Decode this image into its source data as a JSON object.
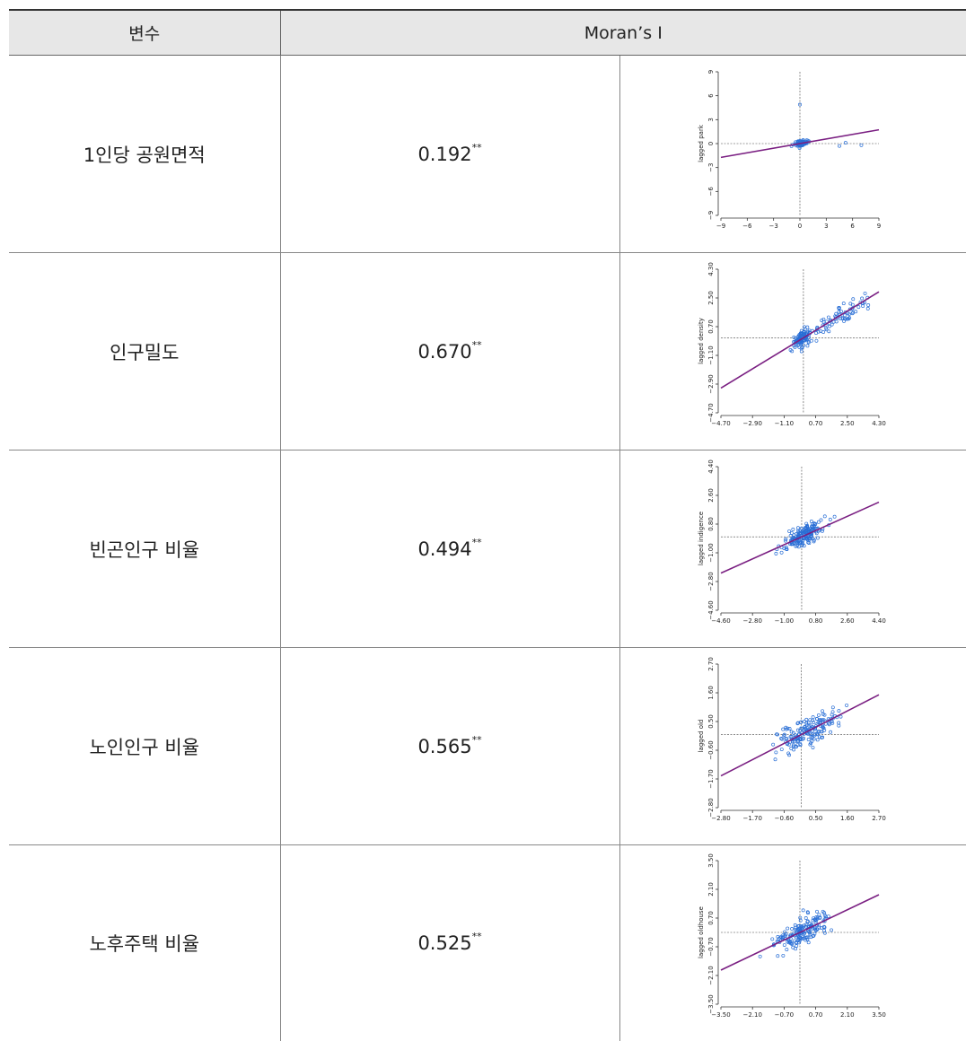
{
  "header": {
    "col1": "변수",
    "col2": "Moran’s I"
  },
  "significance_mark": "**",
  "rows": [
    {
      "variable": "1인당 공원면적",
      "moran": "0.192"
    },
    {
      "variable": "인구밀도",
      "moran": "0.670"
    },
    {
      "variable": "빈곤인구 비율",
      "moran": "0.494"
    },
    {
      "variable": "노인인구 비율",
      "moran": "0.565"
    },
    {
      "variable": "노후주택 비율",
      "moran": "0.525"
    }
  ],
  "chart_data": [
    {
      "type": "scatter",
      "ylabel": "lagged park",
      "xlim": [
        -9,
        9
      ],
      "ylim": [
        -9,
        9
      ],
      "xticks": [
        "−9",
        "−6",
        "−3",
        "0",
        "3",
        "6",
        "9"
      ],
      "yticks": [
        "−9",
        "−6",
        "−3",
        "0",
        "3",
        "6",
        "9"
      ],
      "slope": 0.192,
      "line_color": "#7a1f82",
      "point_color": "#2a6fd6",
      "ref_x": 0,
      "ref_y": 0,
      "seed": 11,
      "spread": "park"
    },
    {
      "type": "scatter",
      "ylabel": "lagged density",
      "xlim": [
        -4.7,
        4.3
      ],
      "ylim": [
        -4.7,
        4.3
      ],
      "xticks": [
        "−4.70",
        "−2.90",
        "−1.10",
        "0.70",
        "2.50",
        "4.30"
      ],
      "yticks": [
        "−4.70",
        "−2.90",
        "−1.10",
        "0.70",
        "2.50",
        "4.30"
      ],
      "slope": 0.67,
      "line_color": "#7a1f82",
      "point_color": "#2a6fd6",
      "ref_x": 0,
      "ref_y": 0,
      "seed": 23,
      "spread": "density"
    },
    {
      "type": "scatter",
      "ylabel": "lagged indigence",
      "xlim": [
        -4.6,
        4.4
      ],
      "ylim": [
        -4.6,
        4.4
      ],
      "xticks": [
        "−4.60",
        "−2.80",
        "−1.00",
        "0.80",
        "2.60",
        "4.40"
      ],
      "yticks": [
        "−4.60",
        "−2.80",
        "−1.00",
        "0.80",
        "2.60",
        "4.40"
      ],
      "slope": 0.494,
      "line_color": "#7a1f82",
      "point_color": "#2a6fd6",
      "ref_x": 0,
      "ref_y": 0,
      "seed": 37,
      "spread": "normal"
    },
    {
      "type": "scatter",
      "ylabel": "lagged old",
      "xlim": [
        -2.8,
        2.7
      ],
      "ylim": [
        -2.8,
        2.7
      ],
      "xticks": [
        "−2.80",
        "−1.70",
        "−0.60",
        "0.50",
        "1.60",
        "2.70"
      ],
      "yticks": [
        "−2.80",
        "−1.70",
        "−0.60",
        "0.50",
        "1.60",
        "2.70"
      ],
      "slope": 0.565,
      "line_color": "#7a1f82",
      "point_color": "#2a6fd6",
      "ref_x": 0,
      "ref_y": 0,
      "seed": 53,
      "spread": "wide"
    },
    {
      "type": "scatter",
      "ylabel": "lagged oldhouse",
      "xlim": [
        -3.5,
        3.5
      ],
      "ylim": [
        -3.5,
        3.5
      ],
      "xticks": [
        "−3.50",
        "−2.10",
        "−0.70",
        "0.70",
        "2.10",
        "3.50"
      ],
      "yticks": [
        "−3.50",
        "−2.10",
        "−0.70",
        "0.70",
        "2.10",
        "3.50"
      ],
      "slope": 0.525,
      "line_color": "#7a1f82",
      "point_color": "#2a6fd6",
      "ref_x": 0,
      "ref_y": 0,
      "seed": 71,
      "spread": "normal"
    }
  ]
}
